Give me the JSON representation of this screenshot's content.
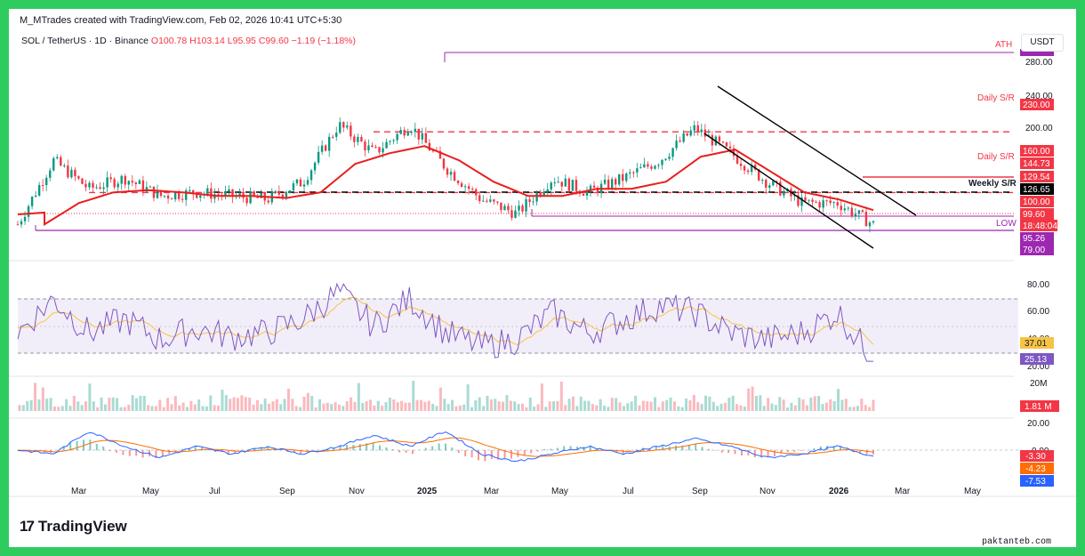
{
  "header": {
    "credit": "M_MTrades created with TradingView.com, Feb 02, 2026 10:41 UTC+5:30",
    "symbol": "SOL / TetherUS · 1D · Binance",
    "ohlc": {
      "O": "100.78",
      "H": "103.14",
      "L": "95.95",
      "C": "99.60",
      "change": "−1.19 (−1.18%)"
    },
    "unit_button": "USDT"
  },
  "logo": {
    "text": "TradingView",
    "icon": "tradingview-logo-icon"
  },
  "watermark": "paktanteb.com",
  "colors": {
    "up": "#089981",
    "down": "#f23645",
    "ma": "#e91e1e",
    "rsi": "#7e57c2",
    "rsi_ma": "#f6c343",
    "macd": "#2962ff",
    "signal": "#ff6d00",
    "ath": "#9c27b0"
  },
  "chart_data": [
    {
      "type": "line",
      "title": "SOL / TetherUS · 1D · Binance",
      "x_tick_labels": [
        "Mar",
        "May",
        "Jul",
        "Sep",
        "Nov",
        "2025",
        "Mar",
        "May",
        "Jul",
        "Sep",
        "Nov",
        "2026",
        "Mar",
        "May"
      ],
      "y_tick_labels": [
        "280.00",
        "240.00",
        "200.00",
        "160.00",
        "100.00"
      ],
      "series": [
        {
          "name": "",
          "x": [
            "2024-02",
            "2024-03",
            "2024-04",
            "2024-05",
            "2024-06",
            "2024-07",
            "2024-08",
            "2024-09",
            "2024-10",
            "2024-11",
            "2024-12",
            "2025-01",
            "2025-02",
            "2025-03",
            "2025-04",
            "2025-05",
            "2025-06",
            "2025-07",
            "2025-08",
            "2025-09",
            "2025-10",
            "2025-11",
            "2025-12",
            "2026-01",
            "2026-02"
          ],
          "y": [
            100,
            190,
            150,
            165,
            140,
            145,
            140,
            135,
            160,
            240,
            200,
            240,
            180,
            135,
            115,
            165,
            145,
            165,
            190,
            235,
            200,
            160,
            130,
            130,
            100
          ]
        },
        {
          "name": "",
          "x": [
            "2024-02",
            "2024-03",
            "2024-04",
            "2024-05",
            "2024-06",
            "2024-07",
            "2024-08",
            "2024-09",
            "2024-10",
            "2024-11",
            "2024-12",
            "2025-01",
            "2025-02",
            "2025-03",
            "2025-04",
            "2025-05",
            "2025-06",
            "2025-07",
            "2025-08",
            "2025-09",
            "2025-10",
            "2025-11",
            "2025-12",
            "2026-01",
            "2026-02"
          ],
          "y": [
            100,
            130,
            145,
            148,
            145,
            140,
            140,
            137,
            145,
            185,
            200,
            210,
            190,
            160,
            140,
            140,
            150,
            150,
            160,
            195,
            205,
            175,
            145,
            135,
            120
          ]
        }
      ],
      "levels": [
        {
          "label": "ATH",
          "value": 294.33
        },
        {
          "label": "Daily S/R",
          "value": 230.0
        },
        {
          "label": "Daily S/R",
          "value": 144.73
        },
        {
          "label": "Weekly S/R",
          "value": 126.65
        },
        {
          "label": "LOW",
          "value": 79.0
        }
      ],
      "price_tags": [
        "230.00",
        "160.00",
        "144.73",
        "129.54",
        "126.65",
        "100.00",
        "99.60",
        "18:48:04",
        "95.26",
        "79.00"
      ]
    },
    {
      "type": "line",
      "title": "RSI",
      "y_tick_labels": [
        "80.00",
        "60.00",
        "40.00",
        "20.00"
      ],
      "values": {
        "rsi": 25.13,
        "rsi_ma": 37.01
      },
      "bands": [
        30,
        70
      ],
      "tags": [
        "37.01",
        "25.13"
      ]
    },
    {
      "type": "bar",
      "title": "Volume",
      "y_tick_labels": [
        "20M"
      ],
      "last_value": "1.81 M"
    },
    {
      "type": "line",
      "title": "MACD",
      "y_tick_labels": [
        "20.00",
        "0.00"
      ],
      "tags": [
        "-3.30",
        "-4.23",
        "-7.53"
      ]
    }
  ]
}
